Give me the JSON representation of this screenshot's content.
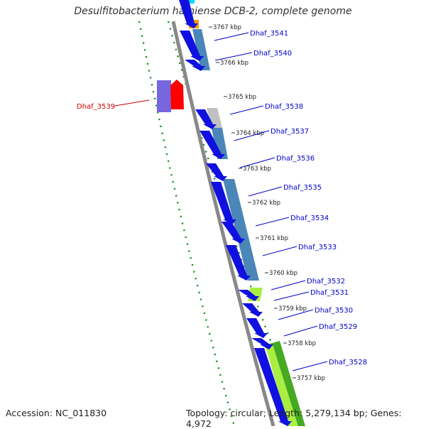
{
  "title": "Desulfitobacterium hafniense DCB-2, complete genome",
  "footer": {
    "accession": "Accession: NC_011830",
    "summary": "Topology: circular; Length: 5,279,134 bp; Genes: 4,972"
  },
  "ruler_labels": [
    "3767 kbp",
    "3766 kbp",
    "3765 kbp",
    "3764 kbp",
    "3763 kbp",
    "3762 kbp",
    "3761 kbp",
    "3760 kbp",
    "3759 kbp",
    "3758 kbp",
    "3757 kbp"
  ],
  "gene_labels": [
    {
      "text": "Dhaf_3541",
      "color": "#0000cc"
    },
    {
      "text": "Dhaf_3540",
      "color": "#0000cc"
    },
    {
      "text": "Dhaf_3539",
      "color": "#cc0000"
    },
    {
      "text": "Dhaf_3538",
      "color": "#0000cc"
    },
    {
      "text": "Dhaf_3537",
      "color": "#0000cc"
    },
    {
      "text": "Dhaf_3536",
      "color": "#0000cc"
    },
    {
      "text": "Dhaf_3535",
      "color": "#0000cc"
    },
    {
      "text": "Dhaf_3534",
      "color": "#0000cc"
    },
    {
      "text": "Dhaf_3533",
      "color": "#0000cc"
    },
    {
      "text": "Dhaf_3532",
      "color": "#0000cc"
    },
    {
      "text": "Dhaf_3531",
      "color": "#0000cc"
    },
    {
      "text": "Dhaf_3530",
      "color": "#0000cc"
    },
    {
      "text": "Dhaf_3529",
      "color": "#0000cc"
    },
    {
      "text": "Dhaf_3528",
      "color": "#0000cc"
    }
  ],
  "colors": {
    "forward_gene": "#1010e0",
    "reverse_gene": "#ff0000",
    "reverse_gene_shade": "#7766dd",
    "cog_blue": "#4a86b8",
    "cog_grey": "#c0c0c0",
    "cog_green": "#44aa22",
    "cog_lightgreen": "#aaee44",
    "cog_orange": "#ff9900",
    "cog_cyan": "#00ddff",
    "backbone": "#888888",
    "dots": "#118811"
  }
}
